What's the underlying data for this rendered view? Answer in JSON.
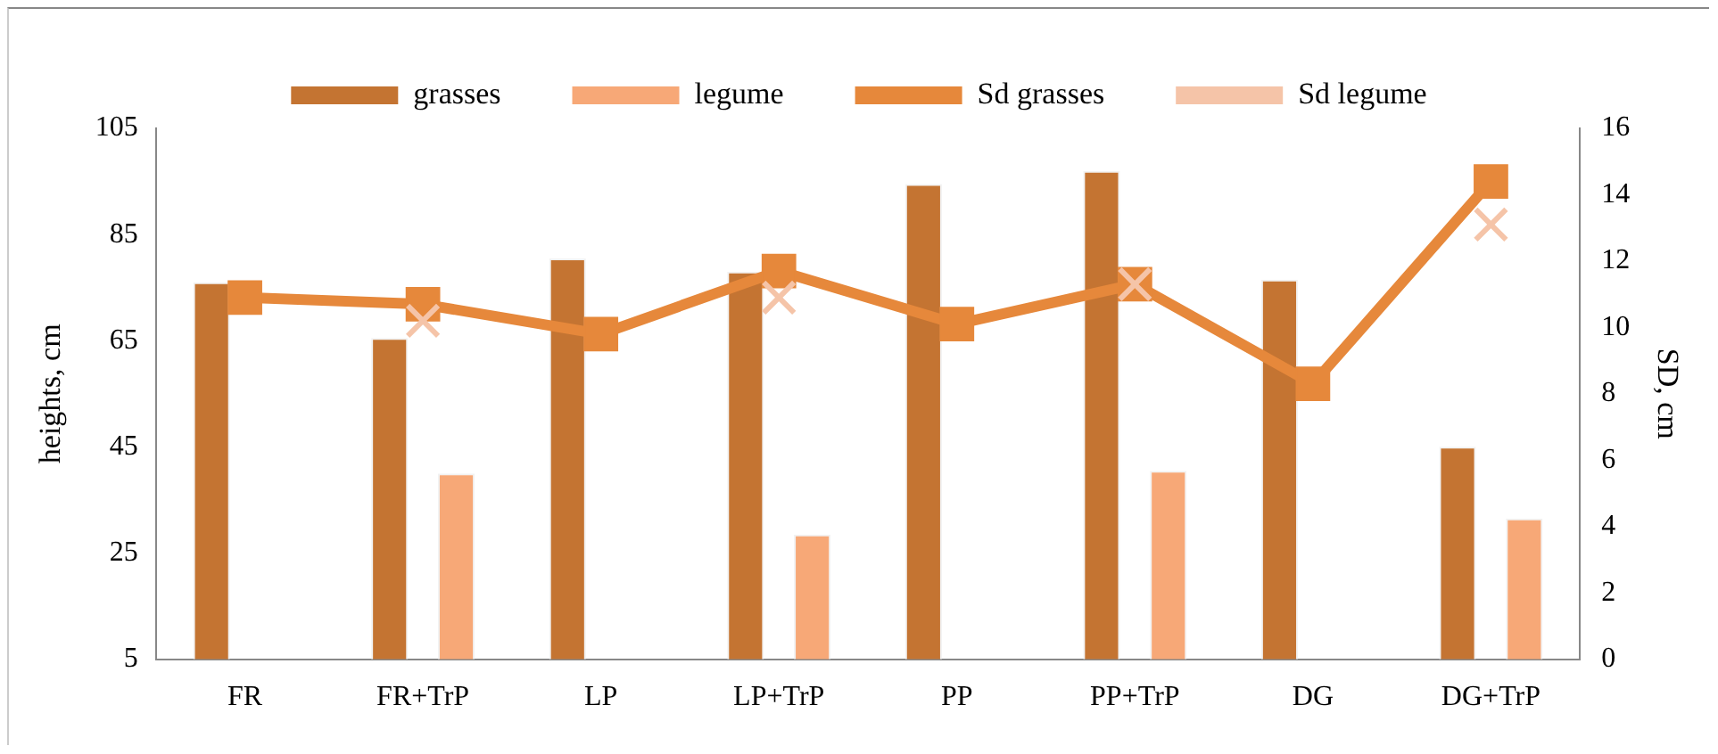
{
  "chart_data": {
    "type": "bar",
    "categories": [
      "FR",
      "FR+TrP",
      "LP",
      "LP+TrP",
      "PP",
      "PP+TrP",
      "DG",
      "DG+TrP"
    ],
    "ylabel": "heights, cm",
    "y2label": "SD, cm",
    "ylim": [
      5,
      105
    ],
    "yticks": [
      5,
      25,
      45,
      65,
      85,
      105
    ],
    "y2lim": [
      0,
      16
    ],
    "y2ticks": [
      0,
      2,
      4,
      6,
      8,
      10,
      12,
      14,
      16
    ],
    "series": [
      {
        "name": "grasses",
        "color": "#c47432",
        "values": [
          76,
          65.5,
          80.5,
          78,
          94.5,
          97,
          76.5,
          45
        ]
      },
      {
        "name": "legume",
        "color": "#f7a877",
        "values": [
          null,
          40,
          null,
          28.5,
          null,
          40.5,
          null,
          31.5
        ]
      },
      {
        "name": "Sd grasses",
        "type": "line",
        "axis": "y2",
        "marker": "square",
        "color": "#e6883b",
        "values": [
          10.9,
          10.7,
          9.8,
          11.7,
          10.1,
          11.3,
          8.3,
          14.4
        ]
      },
      {
        "name": "Sd legume",
        "type": "line",
        "axis": "y2",
        "marker": "cross",
        "color": "#f5c4a8",
        "values": [
          null,
          10.2,
          null,
          10.9,
          null,
          11.3,
          null,
          13.1
        ]
      }
    ],
    "legend": "top",
    "grid": false
  }
}
